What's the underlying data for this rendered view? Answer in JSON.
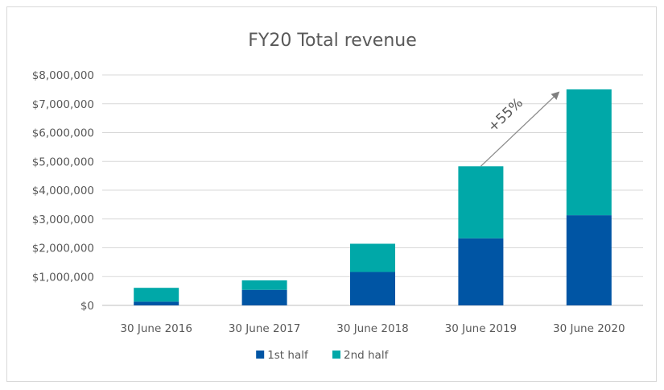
{
  "chart_data": {
    "type": "bar",
    "stacked": true,
    "title": "FY20 Total revenue",
    "xlabel": "",
    "ylabel": "",
    "categories": [
      "30 June 2016",
      "30 June 2017",
      "30 June 2018",
      "30 June 2019",
      "30 June 2020"
    ],
    "series": [
      {
        "name": "1st half",
        "color": "#0055a4",
        "values": [
          130000,
          540000,
          1160000,
          2330000,
          3130000
        ]
      },
      {
        "name": "2nd half",
        "color": "#00a8a8",
        "values": [
          480000,
          330000,
          980000,
          2500000,
          4370000
        ]
      }
    ],
    "ylim": [
      0,
      8000000
    ],
    "yticks": [
      0,
      1000000,
      2000000,
      3000000,
      4000000,
      5000000,
      6000000,
      7000000,
      8000000
    ],
    "ytick_labels": [
      "$0",
      "$1,000,000",
      "$2,000,000",
      "$3,000,000",
      "$4,000,000",
      "$5,000,000",
      "$6,000,000",
      "$7,000,000",
      "$8,000,000"
    ],
    "grid": true,
    "legend_position": "bottom",
    "annotation": {
      "text": "+55%",
      "from_category": "30 June 2019",
      "to_category": "30 June 2020"
    }
  }
}
